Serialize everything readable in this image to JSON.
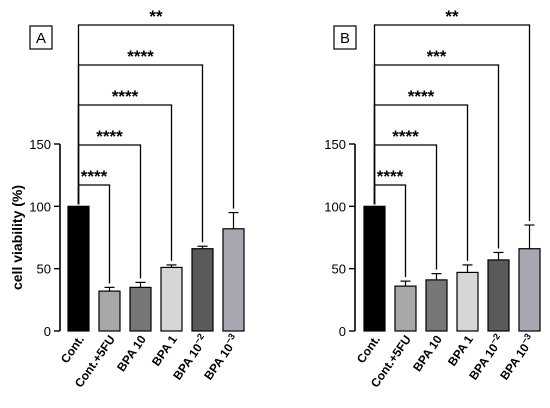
{
  "chart_data": [
    {
      "type": "bar",
      "panel_label": "A",
      "ylabel": "cell viability (%)",
      "ylim": [
        0,
        150
      ],
      "yticks": [
        0,
        50,
        100,
        150
      ],
      "categories": [
        "Cont.",
        "Cont.+5FU",
        "BPA 10",
        "BPA 1",
        "BPA 10",
        "BPA 10"
      ],
      "category_exponents": [
        "",
        "",
        "",
        "",
        "−2",
        "−3"
      ],
      "values": [
        100,
        32,
        35,
        51,
        66,
        82
      ],
      "errors": [
        0,
        3,
        4,
        2,
        2,
        13
      ],
      "colors": [
        "#000000",
        "#a8a8a8",
        "#777777",
        "#d6d6d6",
        "#5a5a5a",
        "#a8a6b0"
      ],
      "significance": [
        {
          "target": 1,
          "label": "****"
        },
        {
          "target": 2,
          "label": "****"
        },
        {
          "target": 3,
          "label": "****"
        },
        {
          "target": 4,
          "label": "****"
        },
        {
          "target": 5,
          "label": "**"
        }
      ]
    },
    {
      "type": "bar",
      "panel_label": "B",
      "ylabel": "",
      "ylim": [
        0,
        150
      ],
      "yticks": [
        0,
        50,
        100,
        150
      ],
      "categories": [
        "Cont.",
        "Cont.+5FU",
        "BPA 10",
        "BPA 1",
        "BPA 10",
        "BPA 10"
      ],
      "category_exponents": [
        "",
        "",
        "",
        "",
        "−2",
        "−3"
      ],
      "values": [
        100,
        36,
        41,
        47,
        57,
        66
      ],
      "errors": [
        0,
        4,
        5,
        6,
        6,
        19
      ],
      "colors": [
        "#000000",
        "#a8a8a8",
        "#777777",
        "#d6d6d6",
        "#5a5a5a",
        "#a8a6b0"
      ],
      "significance": [
        {
          "target": 1,
          "label": "****"
        },
        {
          "target": 2,
          "label": "****"
        },
        {
          "target": 3,
          "label": "****"
        },
        {
          "target": 4,
          "label": "***"
        },
        {
          "target": 5,
          "label": "**"
        }
      ]
    }
  ]
}
